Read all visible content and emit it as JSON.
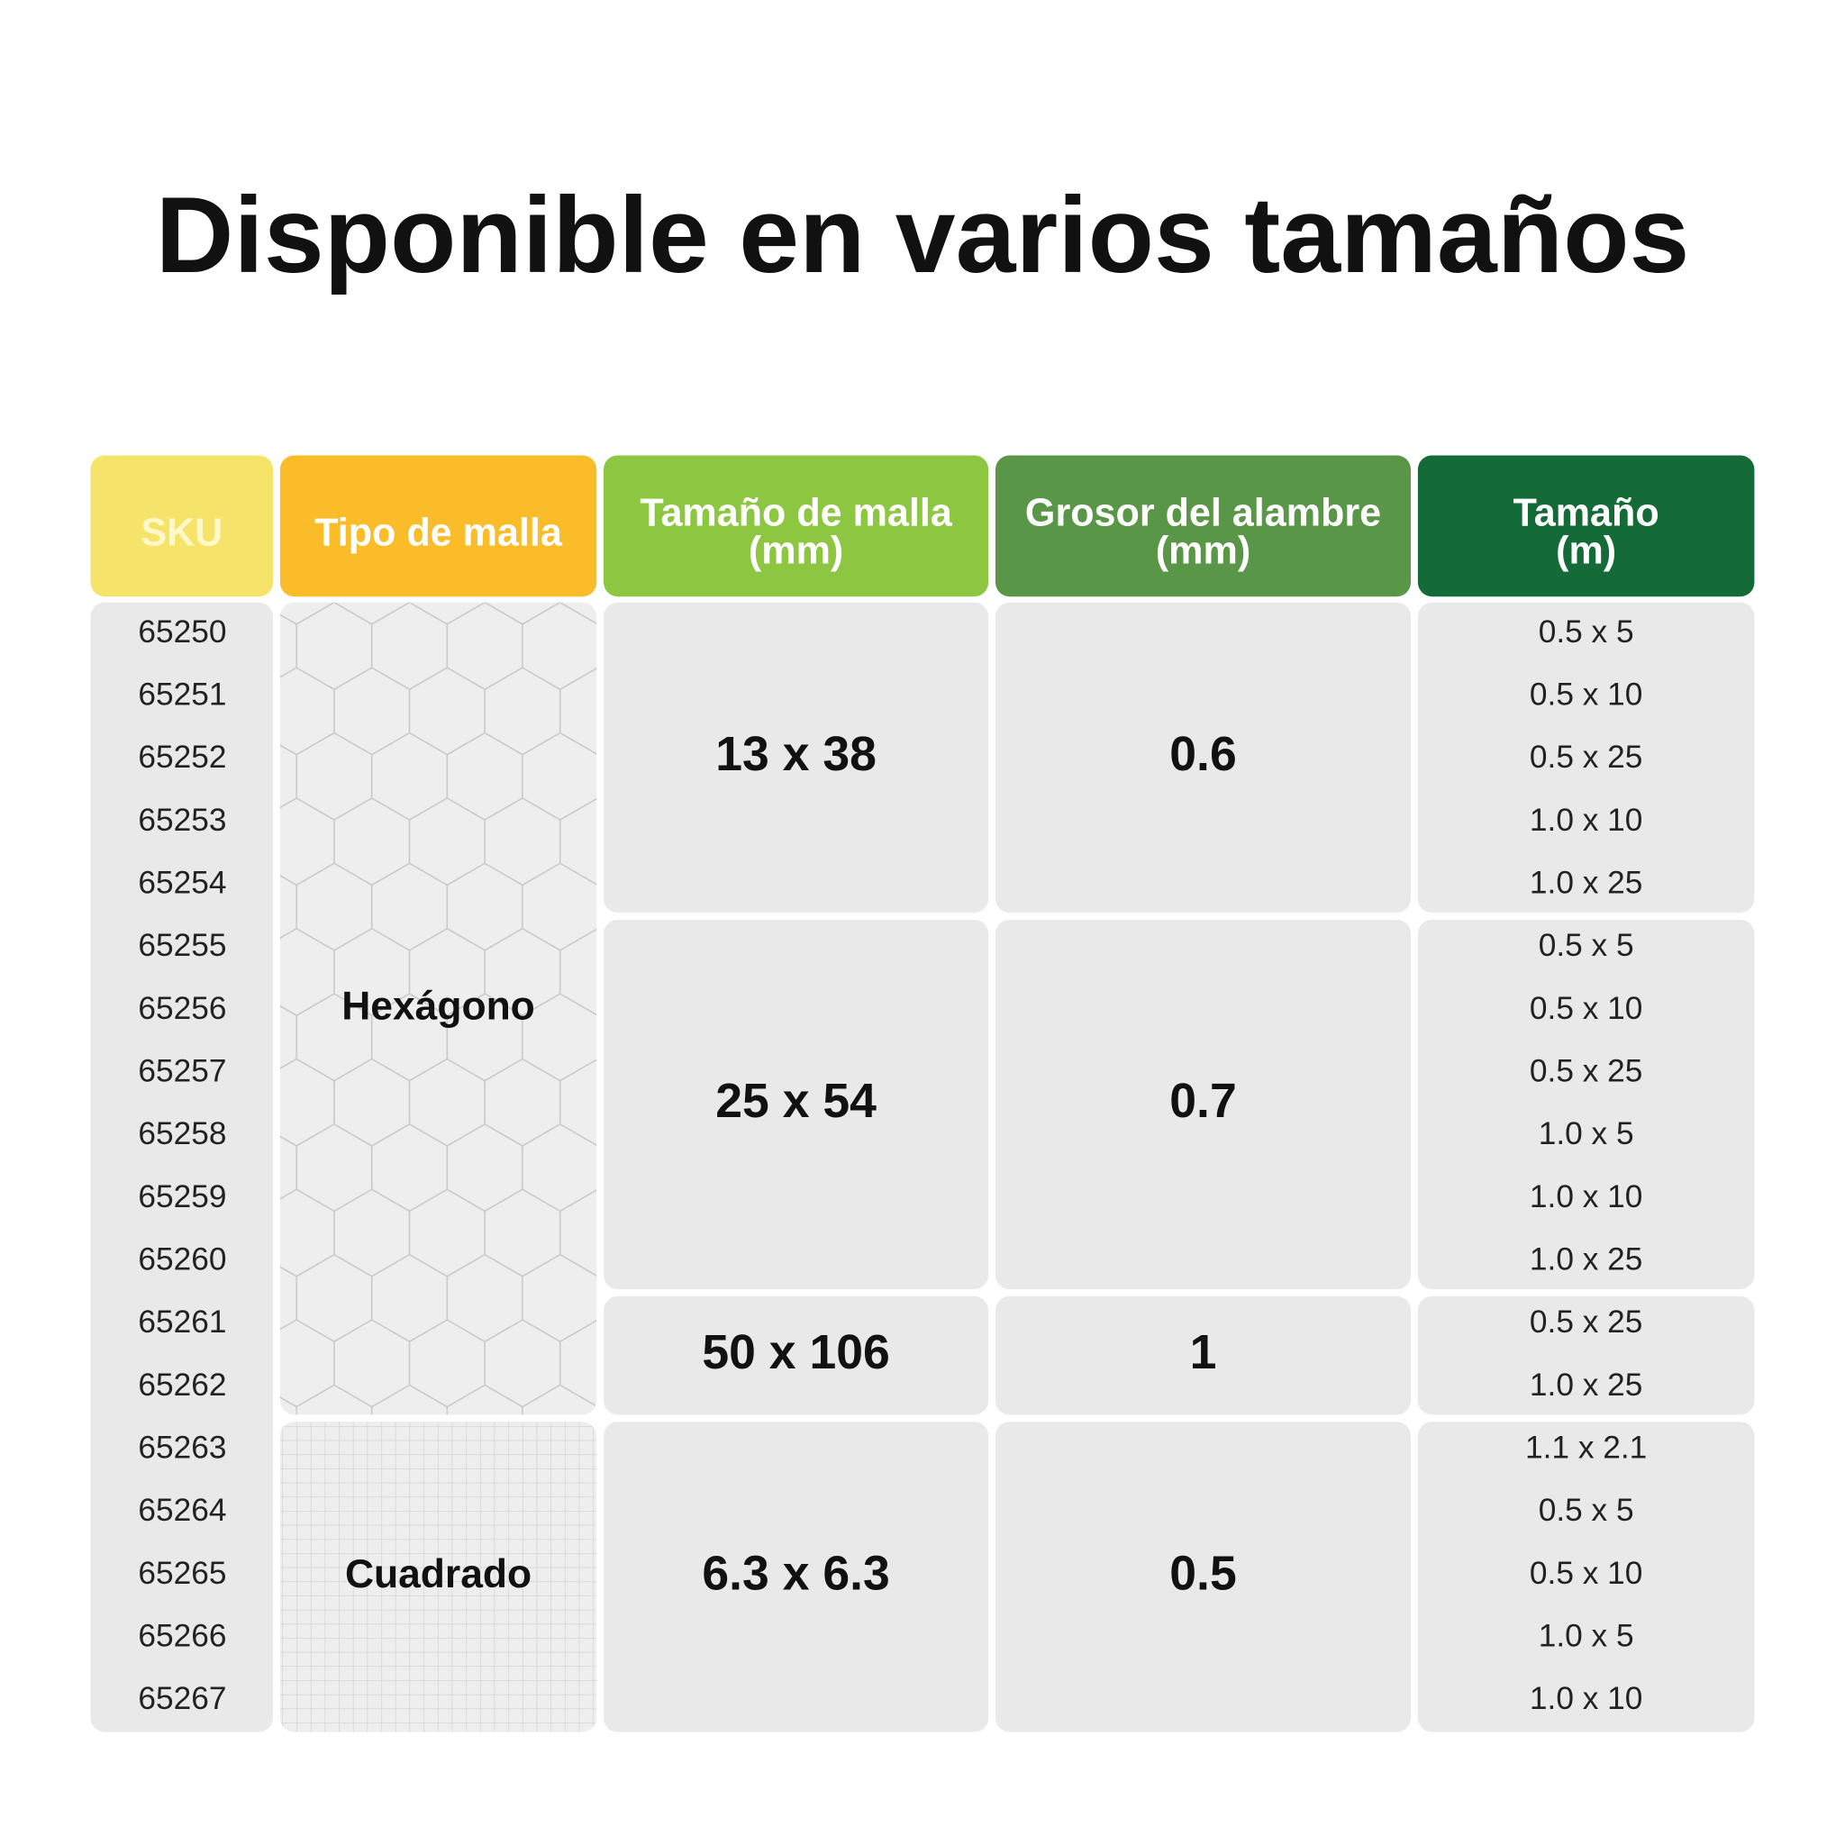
{
  "title": "Disponible en varios tamaños",
  "table": {
    "headers": [
      [
        "SKU"
      ],
      [
        "Tipo de malla"
      ],
      [
        "Tamaño de malla",
        "(mm)"
      ],
      [
        "Grosor del alambre",
        "(mm)"
      ],
      [
        "Tamaño",
        "(m)"
      ]
    ],
    "mesh_types": [
      {
        "label": "Hexágono",
        "groups": [
          {
            "mesh_size": "13 x 38",
            "wire": "0.6",
            "items": [
              {
                "sku": "65250",
                "size": "0.5 x 5"
              },
              {
                "sku": "65251",
                "size": "0.5 x 10"
              },
              {
                "sku": "65252",
                "size": "0.5 x 25"
              },
              {
                "sku": "65253",
                "size": "1.0 x 10"
              },
              {
                "sku": "65254",
                "size": "1.0 x 25"
              }
            ]
          },
          {
            "mesh_size": "25 x 54",
            "wire": "0.7",
            "items": [
              {
                "sku": "65255",
                "size": "0.5 x 5"
              },
              {
                "sku": "65256",
                "size": "0.5 x 10"
              },
              {
                "sku": "65257",
                "size": "0.5 x 25"
              },
              {
                "sku": "65258",
                "size": "1.0 x 5"
              },
              {
                "sku": "65259",
                "size": "1.0 x 10"
              },
              {
                "sku": "65260",
                "size": "1.0 x 25"
              }
            ]
          },
          {
            "mesh_size": "50 x 106",
            "wire": "1",
            "items": [
              {
                "sku": "65261",
                "size": "0.5 x 25"
              },
              {
                "sku": "65262",
                "size": "1.0 x 25"
              }
            ]
          }
        ]
      },
      {
        "label": "Cuadrado",
        "groups": [
          {
            "mesh_size": "6.3 x 6.3",
            "wire": "0.5",
            "items": [
              {
                "sku": "65263",
                "size": "1.1 x 2.1"
              },
              {
                "sku": "65264",
                "size": "0.5 x 5"
              },
              {
                "sku": "65265",
                "size": "0.5 x 10"
              },
              {
                "sku": "65266",
                "size": "1.0 x 5"
              },
              {
                "sku": "65267",
                "size": "1.0 x 10"
              }
            ]
          }
        ]
      }
    ]
  }
}
